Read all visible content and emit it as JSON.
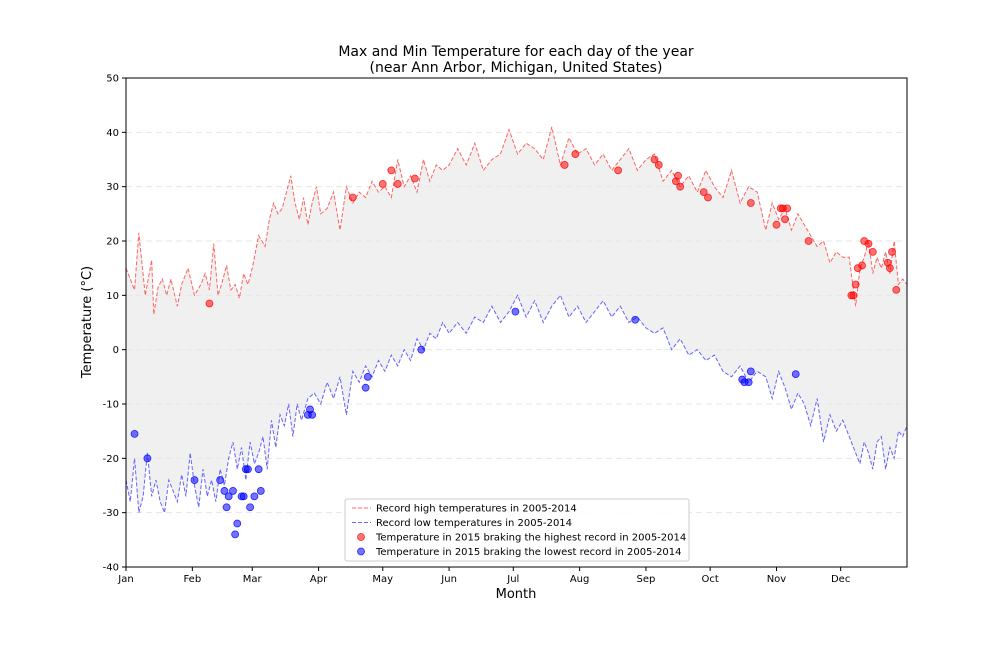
{
  "chart_data": {
    "type": "line",
    "title": "Max and Min Temperature for each day of the year",
    "subtitle": "(near Ann Arbor, Michigan, United States)",
    "xlabel": "Month",
    "ylabel": "Temperature (°C)",
    "ylim": [
      -40,
      50
    ],
    "xlim": [
      1,
      366
    ],
    "yticks": [
      -40,
      -30,
      -20,
      -10,
      0,
      10,
      20,
      30,
      40,
      50
    ],
    "xtick_days": [
      1,
      32,
      60,
      91,
      121,
      152,
      182,
      213,
      244,
      274,
      305,
      335
    ],
    "xtick_labels": [
      "Jan",
      "Feb",
      "Mar",
      "Apr",
      "May",
      "Jun",
      "Jul",
      "Aug",
      "Sep",
      "Oct",
      "Nov",
      "Dec"
    ],
    "grid": "horizontal-dashed",
    "legend_position": "lower-center",
    "fill_between": "#f0f0f0",
    "series": [
      {
        "name": "Record high temperatures in 2005-2014",
        "style": "dashed-line",
        "color": "#ff0000",
        "x": [
          1,
          5,
          7,
          10,
          13,
          14,
          16,
          18,
          20,
          22,
          25,
          27,
          30,
          33,
          36,
          38,
          40,
          42,
          44,
          46,
          48,
          50,
          52,
          54,
          56,
          58,
          60,
          63,
          66,
          68,
          70,
          72,
          74,
          76,
          78,
          80,
          82,
          84,
          86,
          88,
          90,
          92,
          95,
          98,
          101,
          104,
          107,
          110,
          113,
          116,
          119,
          122,
          125,
          128,
          131,
          134,
          137,
          140,
          143,
          146,
          149,
          152,
          156,
          160,
          164,
          168,
          172,
          176,
          180,
          184,
          188,
          192,
          196,
          200,
          204,
          208,
          212,
          216,
          220,
          224,
          228,
          232,
          236,
          240,
          244,
          248,
          252,
          256,
          260,
          264,
          268,
          272,
          276,
          280,
          284,
          288,
          292,
          296,
          300,
          303,
          306,
          309,
          312,
          315,
          318,
          321,
          324,
          327,
          330,
          333,
          336,
          339,
          342,
          344,
          346,
          348,
          350,
          352,
          354,
          356,
          358,
          360,
          362,
          364,
          366
        ],
        "values": [
          15,
          11,
          21.5,
          10,
          16.5,
          6.5,
          11.5,
          13,
          10,
          13,
          8,
          12,
          15,
          10,
          12,
          14,
          11,
          19.5,
          10,
          12.5,
          15.5,
          11,
          12,
          9.5,
          14,
          12,
          15,
          21,
          19,
          24,
          27,
          25,
          26,
          29,
          32,
          27,
          24,
          28,
          23,
          27,
          30,
          25,
          26,
          29,
          22,
          30,
          27,
          29,
          28,
          31,
          29,
          30,
          28,
          35,
          30,
          32,
          29,
          35,
          31,
          34,
          33,
          34,
          37,
          34,
          38,
          33,
          35,
          36,
          40.5,
          36,
          38,
          37,
          35,
          41,
          34,
          39,
          36,
          37,
          34,
          36,
          33,
          35,
          37,
          33,
          35,
          36,
          31,
          33,
          30,
          32,
          29,
          33,
          30,
          28,
          33,
          27,
          30,
          29,
          22,
          27,
          24,
          26,
          22,
          25,
          23,
          21,
          19,
          20,
          16,
          18,
          17,
          17,
          8,
          15,
          17,
          20,
          14,
          17,
          15,
          18,
          14,
          20,
          12,
          13,
          12
        ]
      },
      {
        "name": "Record low temperatures in 2005-2014",
        "style": "dashed-line",
        "color": "#0000ff",
        "x": [
          1,
          3,
          5,
          7,
          9,
          11,
          13,
          15,
          17,
          19,
          21,
          23,
          25,
          27,
          29,
          31,
          33,
          35,
          37,
          39,
          41,
          43,
          45,
          47,
          49,
          51,
          53,
          55,
          57,
          59,
          61,
          63,
          65,
          67,
          69,
          71,
          73,
          75,
          77,
          79,
          81,
          83,
          86,
          89,
          92,
          95,
          98,
          101,
          104,
          107,
          110,
          113,
          116,
          119,
          122,
          125,
          128,
          131,
          134,
          137,
          140,
          143,
          146,
          149,
          152,
          156,
          160,
          164,
          168,
          172,
          176,
          180,
          184,
          188,
          192,
          196,
          200,
          204,
          208,
          212,
          216,
          220,
          224,
          228,
          232,
          236,
          240,
          244,
          248,
          252,
          256,
          260,
          264,
          268,
          272,
          276,
          280,
          284,
          288,
          292,
          296,
          300,
          303,
          306,
          309,
          312,
          315,
          318,
          321,
          324,
          327,
          330,
          333,
          336,
          339,
          342,
          344,
          346,
          348,
          350,
          352,
          354,
          356,
          358,
          360,
          362,
          364,
          366
        ],
        "values": [
          -24,
          -28,
          -20,
          -30,
          -27,
          -19,
          -27,
          -24,
          -28,
          -30,
          -24,
          -26,
          -28,
          -23,
          -27,
          -19,
          -25,
          -29,
          -22,
          -27,
          -24,
          -28,
          -22,
          -25,
          -20,
          -17,
          -22,
          -18,
          -24,
          -17,
          -21,
          -19,
          -16,
          -22,
          -13,
          -18,
          -12,
          -14,
          -10,
          -16,
          -10,
          -13,
          -9,
          -8,
          -10,
          -6,
          -9,
          -5,
          -12,
          -4,
          -6,
          -3,
          -5,
          -2,
          -4,
          -1,
          -3,
          0,
          -2,
          2,
          0,
          3,
          2,
          5,
          3,
          5,
          3,
          6,
          5,
          8,
          5,
          7,
          10,
          6,
          9,
          5,
          8,
          10,
          6,
          8,
          5,
          7,
          9,
          6,
          8,
          5,
          6,
          4,
          3,
          4,
          0,
          2,
          -1,
          0,
          -2,
          -1,
          -4,
          -5,
          -3,
          -6,
          -4,
          -5,
          -9,
          -4,
          -7,
          -11,
          -8,
          -10,
          -14,
          -9,
          -17,
          -12,
          -15,
          -13,
          -16,
          -19,
          -21,
          -17,
          -19,
          -22,
          -17,
          -16,
          -22,
          -18,
          -20,
          -15,
          -16,
          -14
        ]
      },
      {
        "name": "Temperature in 2015 braking the highest record in 2005-2014",
        "style": "scatter",
        "color": "#ff0000",
        "x": [
          40,
          107,
          121,
          125,
          128,
          136,
          206,
          211,
          231,
          248,
          250,
          258,
          259,
          260,
          271,
          273,
          293,
          305,
          307,
          308,
          309,
          310,
          320,
          340,
          341,
          342,
          343,
          345,
          346,
          348,
          350,
          357,
          358,
          359,
          361
        ],
        "values": [
          8.5,
          28,
          30.5,
          33,
          30.5,
          31.5,
          34,
          36,
          33,
          35,
          34,
          31,
          32,
          30,
          29,
          28,
          27,
          23,
          26,
          26,
          24,
          26,
          20,
          10,
          10,
          12,
          15,
          15.5,
          20,
          19.5,
          18,
          16,
          15,
          18,
          11
        ]
      },
      {
        "name": "Temperature in 2015 braking the lowest record in 2005-2014",
        "style": "scatter",
        "color": "#0000ff",
        "x": [
          5,
          11,
          33,
          45,
          47,
          48,
          49,
          51,
          52,
          53,
          55,
          56,
          57,
          58,
          59,
          61,
          63,
          64,
          86,
          87,
          88,
          113,
          114,
          139,
          183,
          239,
          289,
          290,
          292,
          293,
          314
        ],
        "values": [
          -15.5,
          -20,
          -24,
          -24,
          -26,
          -29,
          -27,
          -26,
          -34,
          -32,
          -27,
          -27,
          -22,
          -22,
          -29,
          -27,
          -22,
          -26,
          -12,
          -11,
          -12,
          -7,
          -5,
          0,
          7,
          5.5,
          -5.5,
          -6,
          -6,
          -4,
          -4.5
        ]
      }
    ]
  }
}
